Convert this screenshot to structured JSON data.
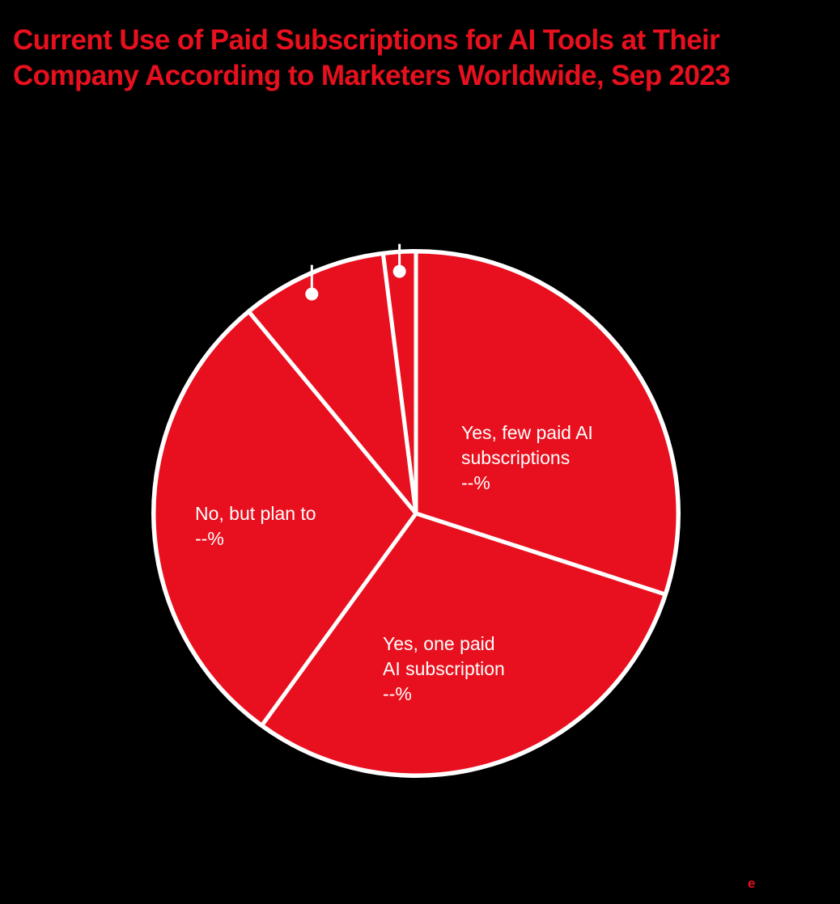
{
  "title": "Current Use of Paid Subscriptions for AI Tools at Their Company According to Marketers Worldwide, Sep 2023",
  "colors": {
    "background": "#000000",
    "accent": "#E8101E",
    "slice_border": "#FFFFFF",
    "label_text": "#FFFFFF"
  },
  "chart_data": {
    "type": "pie",
    "title": "Current Use of Paid Subscriptions for AI Tools at Their Company According to Marketers Worldwide, Sep 2023",
    "start_angle": "12 o'clock, clockwise",
    "slices": [
      {
        "label": "Yes, few paid AI subscriptions",
        "display_value": "--%",
        "value": 30,
        "label_lines": [
          "Yes, few paid AI",
          "subscriptions",
          "--%"
        ]
      },
      {
        "label": "Yes, one paid AI subscription",
        "display_value": "--%",
        "value": 30,
        "label_lines": [
          "Yes, one paid",
          "AI subscription",
          "--%"
        ]
      },
      {
        "label": "No, but plan to",
        "display_value": "--%",
        "value": 29,
        "label_lines": [
          "No, but plan to",
          "--%"
        ]
      },
      {
        "label": "",
        "display_value": "",
        "value": 9,
        "label_lines": [],
        "leader": true
      },
      {
        "label": "",
        "display_value": "",
        "value": 2,
        "label_lines": [],
        "leader": true
      }
    ],
    "legend": "none (labels on slices)",
    "values_note": "Percent values are shown as '--%' in the image; numeric values estimated from slice angles"
  },
  "labels": {
    "few": {
      "line1": "Yes, few paid AI",
      "line2": "subscriptions",
      "line3": "--%"
    },
    "one": {
      "line1": "Yes, one paid",
      "line2": "AI subscription",
      "line3": "--%"
    },
    "plan": {
      "line1": "No, but plan to",
      "line2": "--%"
    }
  },
  "footer": {
    "logo": "e"
  }
}
